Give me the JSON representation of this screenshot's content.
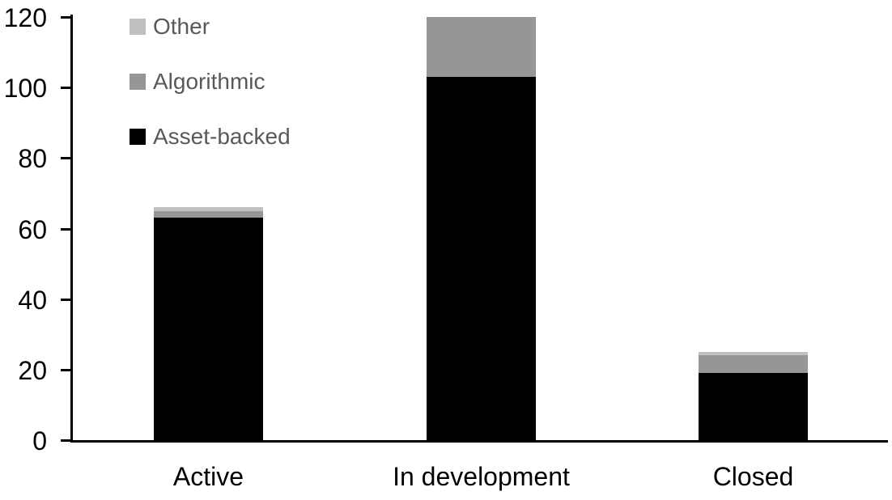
{
  "chart_data": {
    "type": "bar",
    "subtype": "stacked",
    "title": "",
    "xlabel": "",
    "ylabel": "",
    "categories": [
      "Active",
      "In development",
      "Closed"
    ],
    "series": [
      {
        "name": "Asset-backed",
        "color": "#000000",
        "values": [
          63,
          103,
          19
        ]
      },
      {
        "name": "Algorithmic",
        "color": "#969696",
        "values": [
          2,
          17,
          5
        ]
      },
      {
        "name": "Other",
        "color": "#c0c0c0",
        "values": [
          1,
          0,
          1
        ]
      }
    ],
    "stack_totals": [
      66,
      120,
      25
    ],
    "ylim": [
      0,
      120
    ],
    "yticks": [
      0,
      20,
      40,
      60,
      80,
      100,
      120
    ],
    "grid": false,
    "legend_position": "top-left",
    "legend_order": [
      "Other",
      "Algorithmic",
      "Asset-backed"
    ]
  },
  "colors": {
    "background": "#ffffff",
    "axis": "#000000",
    "tick_label": "#000000",
    "category_label": "#000000",
    "legend_text": "#595959"
  }
}
